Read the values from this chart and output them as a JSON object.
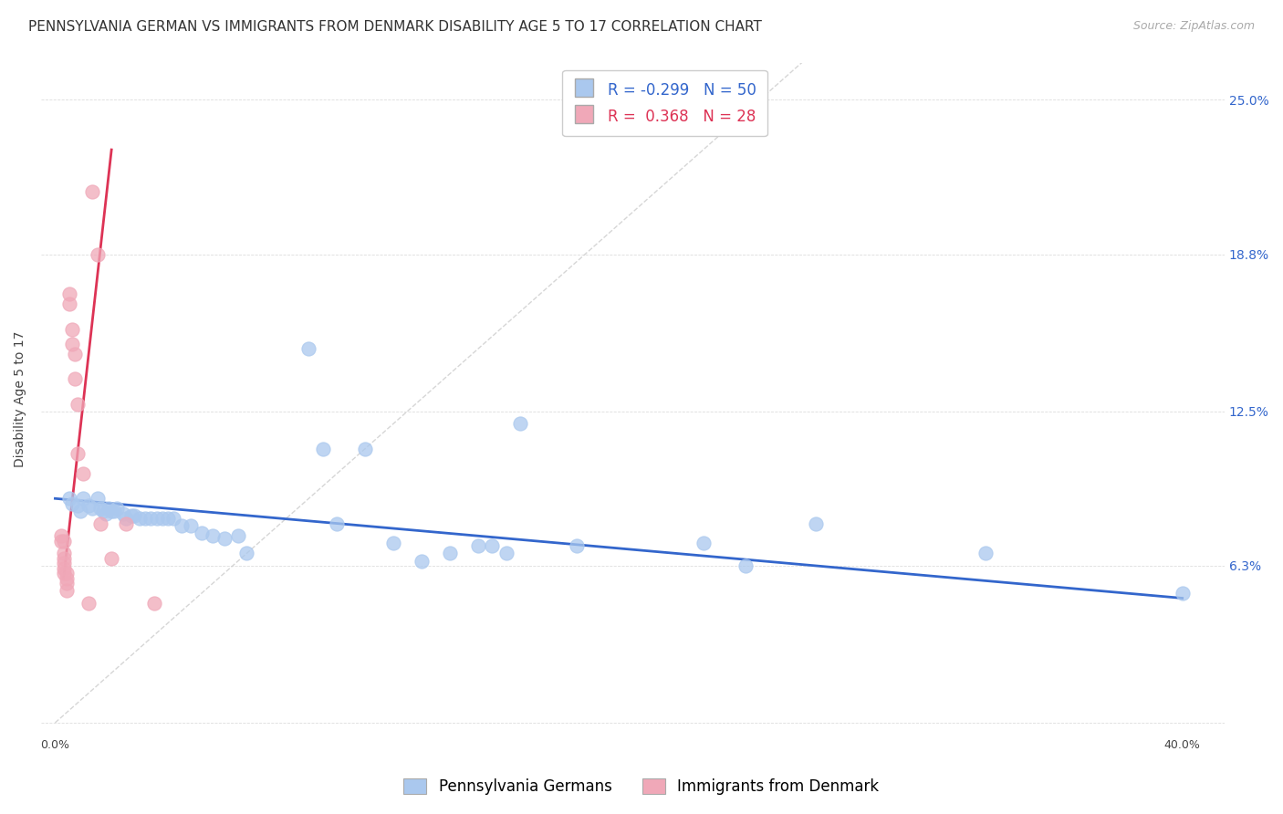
{
  "title": "PENNSYLVANIA GERMAN VS IMMIGRANTS FROM DENMARK DISABILITY AGE 5 TO 17 CORRELATION CHART",
  "source": "Source: ZipAtlas.com",
  "ylabel": "Disability Age 5 to 17",
  "yticks": [
    0.0,
    0.063,
    0.125,
    0.188,
    0.25
  ],
  "ytick_labels": [
    "",
    "6.3%",
    "12.5%",
    "18.8%",
    "25.0%"
  ],
  "xticks": [
    0.0,
    0.1,
    0.2,
    0.3,
    0.4
  ],
  "legend_r_blue": "-0.299",
  "legend_n_blue": "50",
  "legend_r_pink": "0.368",
  "legend_n_pink": "28",
  "legend_label_blue": "Pennsylvania Germans",
  "legend_label_pink": "Immigrants from Denmark",
  "blue_scatter": [
    [
      0.005,
      0.09
    ],
    [
      0.006,
      0.088
    ],
    [
      0.008,
      0.087
    ],
    [
      0.009,
      0.085
    ],
    [
      0.01,
      0.09
    ],
    [
      0.012,
      0.087
    ],
    [
      0.013,
      0.086
    ],
    [
      0.015,
      0.09
    ],
    [
      0.016,
      0.086
    ],
    [
      0.017,
      0.085
    ],
    [
      0.018,
      0.084
    ],
    [
      0.019,
      0.086
    ],
    [
      0.02,
      0.085
    ],
    [
      0.021,
      0.085
    ],
    [
      0.022,
      0.086
    ],
    [
      0.024,
      0.084
    ],
    [
      0.025,
      0.082
    ],
    [
      0.027,
      0.083
    ],
    [
      0.028,
      0.083
    ],
    [
      0.03,
      0.082
    ],
    [
      0.032,
      0.082
    ],
    [
      0.034,
      0.082
    ],
    [
      0.036,
      0.082
    ],
    [
      0.038,
      0.082
    ],
    [
      0.04,
      0.082
    ],
    [
      0.042,
      0.082
    ],
    [
      0.045,
      0.079
    ],
    [
      0.048,
      0.079
    ],
    [
      0.052,
      0.076
    ],
    [
      0.056,
      0.075
    ],
    [
      0.06,
      0.074
    ],
    [
      0.065,
      0.075
    ],
    [
      0.068,
      0.068
    ],
    [
      0.09,
      0.15
    ],
    [
      0.095,
      0.11
    ],
    [
      0.1,
      0.08
    ],
    [
      0.11,
      0.11
    ],
    [
      0.12,
      0.072
    ],
    [
      0.13,
      0.065
    ],
    [
      0.14,
      0.068
    ],
    [
      0.15,
      0.071
    ],
    [
      0.155,
      0.071
    ],
    [
      0.16,
      0.068
    ],
    [
      0.165,
      0.12
    ],
    [
      0.185,
      0.071
    ],
    [
      0.23,
      0.072
    ],
    [
      0.245,
      0.063
    ],
    [
      0.27,
      0.08
    ],
    [
      0.33,
      0.068
    ],
    [
      0.4,
      0.052
    ]
  ],
  "pink_scatter": [
    [
      0.002,
      0.075
    ],
    [
      0.002,
      0.073
    ],
    [
      0.003,
      0.073
    ],
    [
      0.003,
      0.068
    ],
    [
      0.003,
      0.066
    ],
    [
      0.003,
      0.064
    ],
    [
      0.003,
      0.062
    ],
    [
      0.003,
      0.06
    ],
    [
      0.004,
      0.06
    ],
    [
      0.004,
      0.058
    ],
    [
      0.004,
      0.056
    ],
    [
      0.004,
      0.053
    ],
    [
      0.005,
      0.172
    ],
    [
      0.005,
      0.168
    ],
    [
      0.006,
      0.158
    ],
    [
      0.006,
      0.152
    ],
    [
      0.007,
      0.148
    ],
    [
      0.007,
      0.138
    ],
    [
      0.008,
      0.128
    ],
    [
      0.008,
      0.108
    ],
    [
      0.01,
      0.1
    ],
    [
      0.012,
      0.048
    ],
    [
      0.013,
      0.213
    ],
    [
      0.015,
      0.188
    ],
    [
      0.016,
      0.08
    ],
    [
      0.02,
      0.066
    ],
    [
      0.025,
      0.08
    ],
    [
      0.035,
      0.048
    ]
  ],
  "blue_line_x": [
    0.0,
    0.4
  ],
  "blue_line_y": [
    0.09,
    0.05
  ],
  "pink_line_x": [
    0.003,
    0.02
  ],
  "pink_line_y": [
    0.058,
    0.23
  ],
  "dashed_line_x": [
    0.0,
    0.265
  ],
  "dashed_line_y": [
    0.0,
    0.265
  ],
  "bg_color": "#ffffff",
  "plot_bg_color": "#ffffff",
  "grid_color": "#dddddd",
  "blue_color": "#aac8ee",
  "pink_color": "#f0a8b8",
  "blue_line_color": "#3366cc",
  "pink_line_color": "#dd3355",
  "dashed_line_color": "#cccccc",
  "title_fontsize": 11,
  "source_fontsize": 9,
  "axis_label_fontsize": 10,
  "tick_fontsize": 9,
  "legend_fontsize": 12,
  "scatter_size": 120,
  "scatter_alpha": 0.75,
  "scatter_linewidth": 0.8
}
